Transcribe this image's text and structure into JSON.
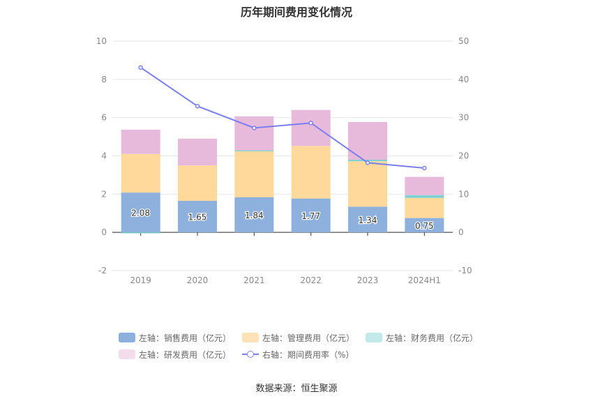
{
  "chart_data": {
    "type": "bar",
    "title": "历年期间费用变化情况",
    "categories": [
      "2019",
      "2020",
      "2021",
      "2022",
      "2023",
      "2024H1"
    ],
    "stacked": true,
    "left_axis": {
      "ylim": [
        -2,
        10
      ],
      "ticks": [
        "-2",
        "0",
        "2",
        "4",
        "6",
        "8",
        "10"
      ]
    },
    "right_axis": {
      "ylim": [
        -10,
        50
      ],
      "ticks": [
        "-10",
        "0",
        "10",
        "20",
        "30",
        "40",
        "50"
      ]
    },
    "series": [
      {
        "name": "左轴：销售费用（亿元）",
        "axis": "left",
        "color": "#8eb0dc",
        "values": [
          2.08,
          1.65,
          1.84,
          1.77,
          1.34,
          0.75
        ],
        "labels": [
          "2.08",
          "1.65",
          "1.84",
          "1.77",
          "1.34",
          "0.75"
        ]
      },
      {
        "name": "左轴：管理费用（亿元）",
        "axis": "left",
        "color": "#fed99b",
        "values": [
          2.02,
          1.85,
          2.4,
          2.75,
          2.38,
          1.05
        ]
      },
      {
        "name": "左轴：财务费用（亿元）",
        "axis": "left",
        "color": "#7fd1d1",
        "values": [
          -0.05,
          0.0,
          0.05,
          0.0,
          0.08,
          0.15
        ]
      },
      {
        "name": "左轴：研发费用（亿元）",
        "axis": "left",
        "color": "#e7b9da",
        "values": [
          1.27,
          1.4,
          1.78,
          1.88,
          1.97,
          0.95
        ]
      },
      {
        "name": "右轴：期间费用率（%）",
        "axis": "right",
        "type": "line",
        "color": "#7a7ff0",
        "values": [
          43.1,
          33.0,
          27.3,
          28.6,
          18.2,
          16.8
        ]
      }
    ],
    "legend_position": "bottom",
    "grid": true
  },
  "legend": [
    {
      "label": "左轴：销售费用（亿元）",
      "color": "#8eb0dc",
      "kind": "bar"
    },
    {
      "label": "左轴：管理费用（亿元）",
      "color": "#fde2b8",
      "kind": "bar"
    },
    {
      "label": "左轴：财务费用（亿元）",
      "color": "#c2eaea",
      "kind": "bar"
    },
    {
      "label": "左轴：研发费用（亿元）",
      "color": "#f3dcec",
      "kind": "bar"
    },
    {
      "label": "右轴：期间费用率（%）",
      "color": "#7a7ff0",
      "kind": "line"
    }
  ],
  "source": "数据来源：恒生聚源"
}
